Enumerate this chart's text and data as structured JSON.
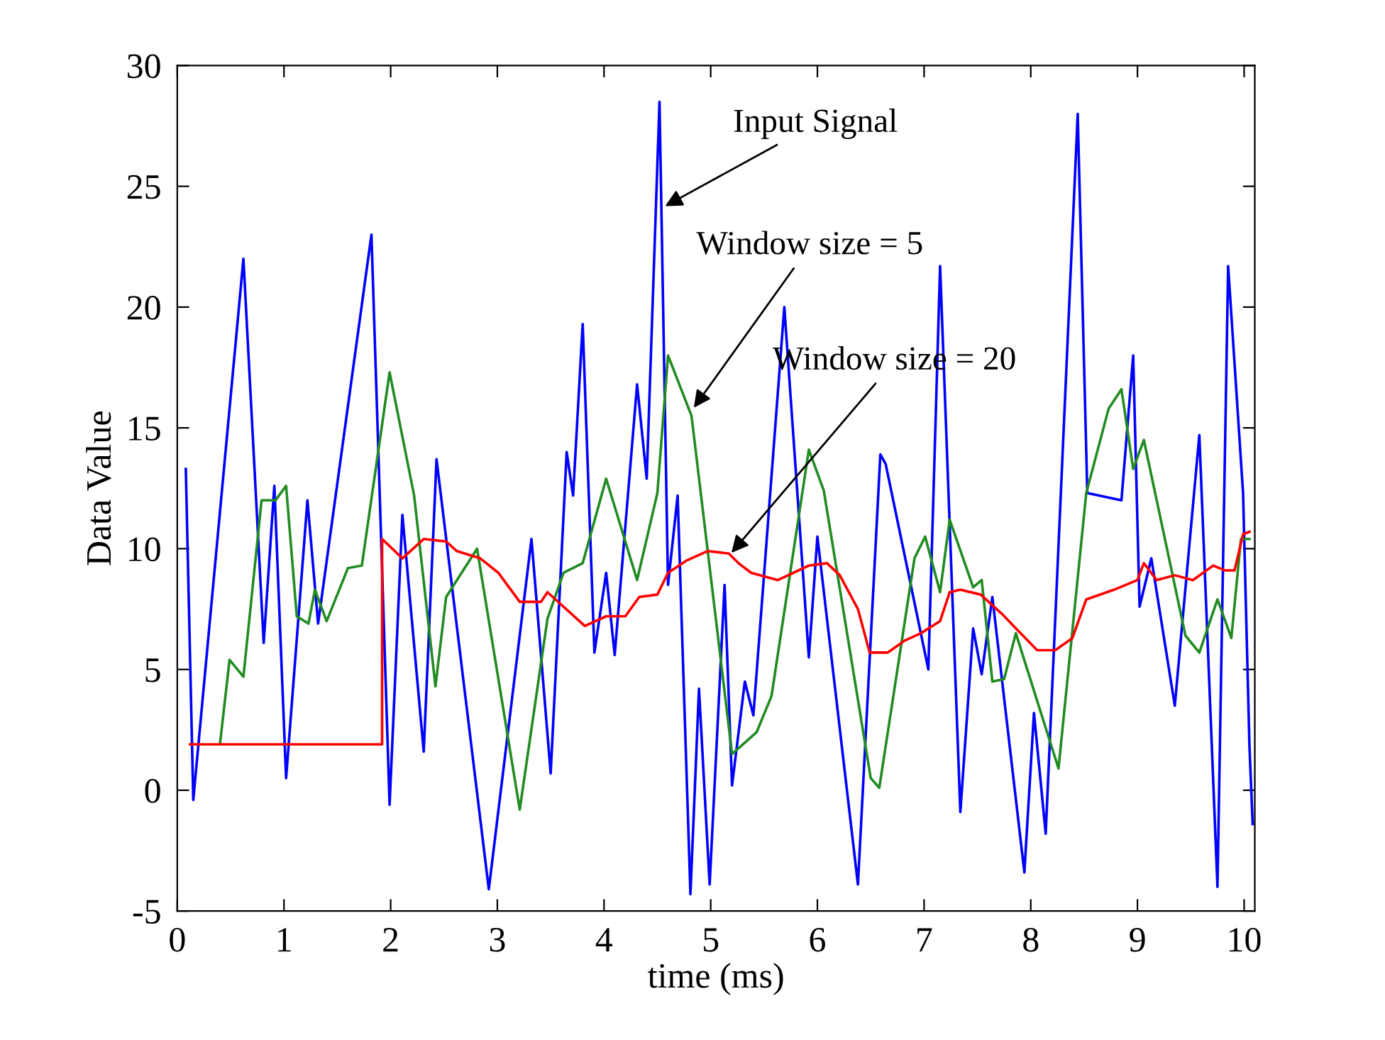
{
  "chart_data": {
    "type": "line",
    "xlabel": "time (ms)",
    "ylabel": "Data Value",
    "xlim": [
      0,
      10.1
    ],
    "ylim": [
      -5,
      30
    ],
    "xticks": [
      0,
      1,
      2,
      3,
      4,
      5,
      6,
      7,
      8,
      9,
      10
    ],
    "yticks": [
      -5,
      0,
      5,
      10,
      15,
      20,
      25,
      30
    ],
    "grid": false,
    "legend": false,
    "marker": "none",
    "line_style": "solid",
    "series": [
      {
        "color": "#0000ff",
        "x": [
          0.08,
          0.15,
          0.62,
          0.81,
          0.91,
          1.02,
          1.22,
          1.32,
          1.82,
          1.99,
          2.11,
          2.31,
          2.43,
          2.92,
          3.32,
          3.5,
          3.65,
          3.71,
          3.8,
          3.91,
          4.02,
          4.1,
          4.31,
          4.4,
          4.52,
          4.6,
          4.69,
          4.81,
          4.89,
          4.99,
          5.13,
          5.2,
          5.32,
          5.4,
          5.69,
          5.92,
          6.0,
          6.38,
          6.59,
          6.64,
          7.04,
          7.15,
          7.34,
          7.46,
          7.54,
          7.64,
          7.94,
          8.03,
          8.14,
          8.44,
          8.53,
          8.85,
          8.96,
          9.02,
          9.13,
          9.35,
          9.58,
          9.75,
          9.85,
          9.99,
          10.05,
          10.08
        ],
        "values": [
          13.3,
          -0.4,
          22.0,
          6.1,
          12.6,
          0.5,
          12.0,
          6.9,
          23.0,
          -0.6,
          11.4,
          1.6,
          13.7,
          -4.1,
          10.4,
          0.7,
          14.0,
          12.2,
          19.3,
          5.7,
          9.0,
          5.6,
          16.8,
          12.9,
          28.5,
          8.5,
          12.2,
          -4.3,
          4.2,
          -3.9,
          8.5,
          0.2,
          4.5,
          3.1,
          20.0,
          5.5,
          10.5,
          -3.9,
          13.9,
          13.5,
          5.0,
          21.7,
          -0.9,
          6.7,
          4.8,
          8.0,
          -3.4,
          3.2,
          -1.8,
          28.0,
          12.3,
          12.0,
          18.0,
          7.6,
          9.6,
          3.5,
          14.7,
          -4.0,
          21.7,
          12.3,
          1.8,
          -1.4
        ]
      },
      {
        "color": "#228b22",
        "x": [
          0.4,
          0.49,
          0.62,
          0.79,
          0.92,
          1.02,
          1.12,
          1.23,
          1.29,
          1.4,
          1.6,
          1.73,
          1.99,
          2.22,
          2.42,
          2.52,
          2.81,
          3.21,
          3.47,
          3.62,
          3.8,
          4.02,
          4.31,
          4.5,
          4.6,
          4.82,
          5.2,
          5.43,
          5.57,
          5.92,
          6.06,
          6.5,
          6.58,
          6.91,
          7.01,
          7.15,
          7.24,
          7.46,
          7.54,
          7.64,
          7.75,
          7.86,
          8.26,
          8.52,
          8.73,
          8.85,
          8.96,
          9.06,
          9.45,
          9.58,
          9.75,
          9.88,
          9.97,
          10.05
        ],
        "values": [
          1.9,
          5.4,
          4.7,
          12.0,
          12.0,
          12.6,
          7.2,
          6.9,
          8.3,
          7.0,
          9.2,
          9.3,
          17.3,
          12.2,
          4.3,
          8.0,
          10.0,
          -0.8,
          7.1,
          9.0,
          9.4,
          12.9,
          8.7,
          12.3,
          18.0,
          15.5,
          1.5,
          2.4,
          3.9,
          14.1,
          12.4,
          0.5,
          0.1,
          9.6,
          10.5,
          8.2,
          11.2,
          8.4,
          8.7,
          4.5,
          4.6,
          6.5,
          0.9,
          12.3,
          15.8,
          16.6,
          13.3,
          14.5,
          6.4,
          5.7,
          7.9,
          6.3,
          10.4,
          10.4
        ]
      },
      {
        "color": "#ff0000",
        "x": [
          0.12,
          1.92,
          1.92,
          2.11,
          2.31,
          2.52,
          2.62,
          2.84,
          3.01,
          3.21,
          3.41,
          3.47,
          3.82,
          4.02,
          4.2,
          4.33,
          4.5,
          4.6,
          4.77,
          4.97,
          5.17,
          5.26,
          5.38,
          5.63,
          5.92,
          6.09,
          6.21,
          6.38,
          6.49,
          6.66,
          6.82,
          6.97,
          7.15,
          7.24,
          7.34,
          7.53,
          7.73,
          7.86,
          8.06,
          8.23,
          8.39,
          8.52,
          8.78,
          9.0,
          9.06,
          9.18,
          9.35,
          9.52,
          9.71,
          9.82,
          9.91,
          9.99,
          10.05
        ],
        "values": [
          1.9,
          1.9,
          10.4,
          9.6,
          10.4,
          10.3,
          9.9,
          9.6,
          9.0,
          7.8,
          7.8,
          8.2,
          6.8,
          7.2,
          7.2,
          8.0,
          8.1,
          9.0,
          9.5,
          9.9,
          9.8,
          9.4,
          9.0,
          8.7,
          9.3,
          9.4,
          8.9,
          7.5,
          5.7,
          5.7,
          6.2,
          6.5,
          7.0,
          8.2,
          8.3,
          8.1,
          7.3,
          6.7,
          5.8,
          5.8,
          6.3,
          7.9,
          8.3,
          8.7,
          9.4,
          8.7,
          8.9,
          8.7,
          9.3,
          9.1,
          9.1,
          10.6,
          10.7
        ]
      }
    ],
    "annotations": [
      {
        "text": "Input Signal",
        "x": 4.54,
        "y": 24.1
      },
      {
        "text": "Window size = 5",
        "x": 4.82,
        "y": 15.7
      },
      {
        "text": "Window size = 20",
        "x": 5.17,
        "y": 9.7
      }
    ]
  }
}
